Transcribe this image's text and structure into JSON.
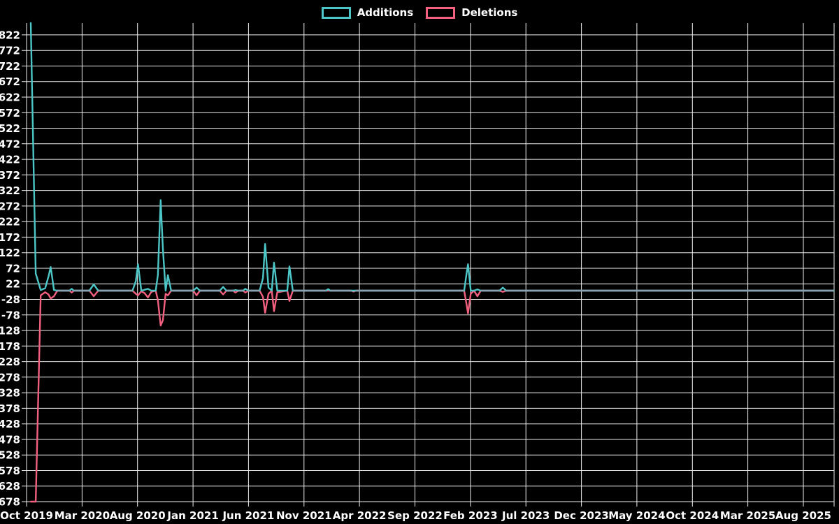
{
  "window": {
    "background": "#000000"
  },
  "colors": {
    "background": "#000000",
    "grid": "#efefef",
    "text": "#ffffff",
    "additions": "#4cc6c6",
    "deletions": "#f2607f",
    "overlap_baseline": "#8ba1af"
  },
  "chart_data": {
    "type": "line",
    "title": "",
    "grid": true,
    "legend_position": "top-center",
    "x_axis": {
      "unit": "month",
      "start": "Oct 2019",
      "end": "Aug 2025",
      "months_per_tick": 5,
      "tick_labels": [
        "Oct 2019",
        "Mar 2020",
        "Aug 2020",
        "Jan 2021",
        "Jun 2021",
        "Nov 2021",
        "Apr 2022",
        "Sep 2022",
        "Feb 2023",
        "Jul 2023",
        "Dec 2023",
        "May 2024",
        "Oct 2024",
        "Mar 2025",
        "Aug 2025"
      ]
    },
    "y_axis": {
      "tick_step": 50,
      "range": [
        -678,
        860
      ],
      "tick_labels_top_to_bottom": [
        "822",
        "772",
        "722",
        "672",
        "622",
        "572",
        "522",
        "472",
        "422",
        "372",
        "322",
        "272",
        "222",
        "172",
        "122",
        "72",
        "22",
        "-28",
        "-78",
        "-128",
        "-178",
        "-228",
        "-278",
        "-328",
        "-378",
        "-428",
        "-478",
        "-528",
        "-578",
        "-628",
        "-678"
      ]
    },
    "t_unit": "months since Oct 2019 (fractional = intra-month detail)",
    "baseline": 0,
    "series": [
      {
        "name": "Additions",
        "color": "#4cc6c6",
        "points": [
          [
            0,
            860
          ],
          [
            0.45,
            55
          ],
          [
            0.9,
            2
          ],
          [
            1.3,
            8
          ],
          [
            1.6,
            45
          ],
          [
            1.8,
            76
          ],
          [
            2.1,
            2
          ],
          [
            2.4,
            0
          ],
          [
            3.5,
            0
          ],
          [
            3.7,
            6
          ],
          [
            3.9,
            0
          ],
          [
            5.3,
            0
          ],
          [
            5.7,
            20
          ],
          [
            6.1,
            0
          ],
          [
            9.2,
            0
          ],
          [
            9.5,
            30
          ],
          [
            9.7,
            85
          ],
          [
            10,
            0
          ],
          [
            10.3,
            3
          ],
          [
            10.6,
            6
          ],
          [
            10.9,
            0
          ],
          [
            11.3,
            0
          ],
          [
            11.5,
            50
          ],
          [
            11.75,
            291
          ],
          [
            11.95,
            134
          ],
          [
            12.2,
            0
          ],
          [
            12.4,
            50
          ],
          [
            12.7,
            0
          ],
          [
            14.7,
            0
          ],
          [
            15,
            10
          ],
          [
            15.3,
            0
          ],
          [
            17.1,
            0
          ],
          [
            17.4,
            12
          ],
          [
            17.7,
            0
          ],
          [
            18.3,
            0
          ],
          [
            18.5,
            2
          ],
          [
            18.8,
            0
          ],
          [
            19.2,
            0
          ],
          [
            19.4,
            6
          ],
          [
            19.7,
            0
          ],
          [
            20.7,
            0
          ],
          [
            21,
            40
          ],
          [
            21.2,
            150
          ],
          [
            21.5,
            10
          ],
          [
            21.8,
            0
          ],
          [
            22,
            90
          ],
          [
            22.3,
            0
          ],
          [
            23.2,
            0
          ],
          [
            23.4,
            78
          ],
          [
            23.7,
            0
          ],
          [
            26.7,
            0
          ],
          [
            26.9,
            5
          ],
          [
            27.1,
            0
          ],
          [
            39.2,
            0
          ],
          [
            39.4,
            50
          ],
          [
            39.55,
            85
          ],
          [
            39.8,
            0
          ],
          [
            40.1,
            0
          ],
          [
            40.4,
            4
          ],
          [
            40.7,
            0
          ],
          [
            42.4,
            0
          ],
          [
            42.7,
            10
          ],
          [
            43,
            0
          ],
          [
            72.6,
            0
          ]
        ]
      },
      {
        "name": "Deletions",
        "color": "#f2607f",
        "points": [
          [
            0,
            -678
          ],
          [
            0.45,
            -678
          ],
          [
            0.9,
            -15
          ],
          [
            1.3,
            -5
          ],
          [
            1.6,
            -12
          ],
          [
            1.8,
            -25
          ],
          [
            2.1,
            -18
          ],
          [
            2.4,
            0
          ],
          [
            3.5,
            0
          ],
          [
            3.7,
            -6
          ],
          [
            3.9,
            0
          ],
          [
            5.3,
            0
          ],
          [
            5.7,
            -18
          ],
          [
            6.1,
            0
          ],
          [
            9.2,
            0
          ],
          [
            9.5,
            -10
          ],
          [
            9.7,
            -15
          ],
          [
            10,
            -2
          ],
          [
            10.3,
            -8
          ],
          [
            10.6,
            -22
          ],
          [
            10.9,
            -4
          ],
          [
            11.3,
            0
          ],
          [
            11.5,
            -30
          ],
          [
            11.75,
            -112
          ],
          [
            11.95,
            -95
          ],
          [
            12.2,
            -10
          ],
          [
            12.4,
            -15
          ],
          [
            12.7,
            0
          ],
          [
            14.7,
            0
          ],
          [
            15,
            -15
          ],
          [
            15.3,
            0
          ],
          [
            17.1,
            0
          ],
          [
            17.4,
            -12
          ],
          [
            17.7,
            0
          ],
          [
            18.3,
            0
          ],
          [
            18.5,
            -6
          ],
          [
            18.8,
            0
          ],
          [
            19.2,
            0
          ],
          [
            19.4,
            -6
          ],
          [
            19.7,
            0
          ],
          [
            20.7,
            0
          ],
          [
            21,
            -20
          ],
          [
            21.2,
            -71
          ],
          [
            21.5,
            -10
          ],
          [
            21.8,
            0
          ],
          [
            22,
            -66
          ],
          [
            22.3,
            -5
          ],
          [
            23.2,
            0
          ],
          [
            23.4,
            -33
          ],
          [
            23.7,
            0
          ],
          [
            26.7,
            0
          ],
          [
            29,
            0
          ],
          [
            29.2,
            -3
          ],
          [
            29.4,
            0
          ],
          [
            39.2,
            0
          ],
          [
            39.4,
            -40
          ],
          [
            39.55,
            -73
          ],
          [
            39.8,
            -10
          ],
          [
            40.1,
            0
          ],
          [
            40.4,
            -18
          ],
          [
            40.7,
            0
          ],
          [
            42.4,
            0
          ],
          [
            42.7,
            -4
          ],
          [
            43,
            0
          ],
          [
            72.6,
            0
          ]
        ]
      }
    ]
  }
}
